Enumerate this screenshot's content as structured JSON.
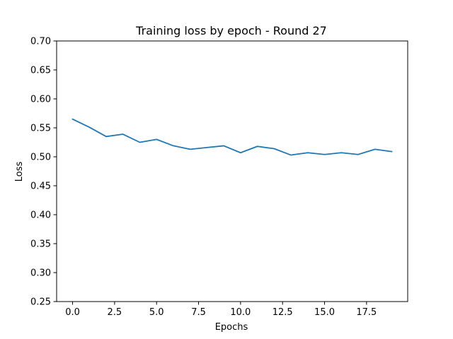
{
  "chart_data": {
    "type": "line",
    "title": "Training loss by epoch - Round 27",
    "xlabel": "Epochs",
    "ylabel": "Loss",
    "xlim": [
      -0.95,
      19.95
    ],
    "ylim": [
      0.25,
      0.7
    ],
    "xticks": [
      0.0,
      2.5,
      5.0,
      7.5,
      10.0,
      12.5,
      15.0,
      17.5
    ],
    "xtick_labels": [
      "0.0",
      "2.5",
      "5.0",
      "7.5",
      "10.0",
      "12.5",
      "15.0",
      "17.5"
    ],
    "yticks": [
      0.25,
      0.3,
      0.35,
      0.4,
      0.45,
      0.5,
      0.55,
      0.6,
      0.65,
      0.7
    ],
    "ytick_labels": [
      "0.25",
      "0.30",
      "0.35",
      "0.40",
      "0.45",
      "0.50",
      "0.55",
      "0.60",
      "0.65",
      "0.70"
    ],
    "grid": false,
    "series": [
      {
        "color": "#1f77b4",
        "x": [
          0,
          1,
          2,
          3,
          4,
          5,
          6,
          7,
          8,
          9,
          10,
          11,
          12,
          13,
          14,
          15,
          16,
          17,
          18,
          19
        ],
        "y": [
          0.565,
          0.551,
          0.535,
          0.539,
          0.525,
          0.53,
          0.519,
          0.513,
          0.516,
          0.519,
          0.507,
          0.518,
          0.514,
          0.503,
          0.507,
          0.504,
          0.507,
          0.504,
          0.513,
          0.509
        ]
      }
    ]
  }
}
